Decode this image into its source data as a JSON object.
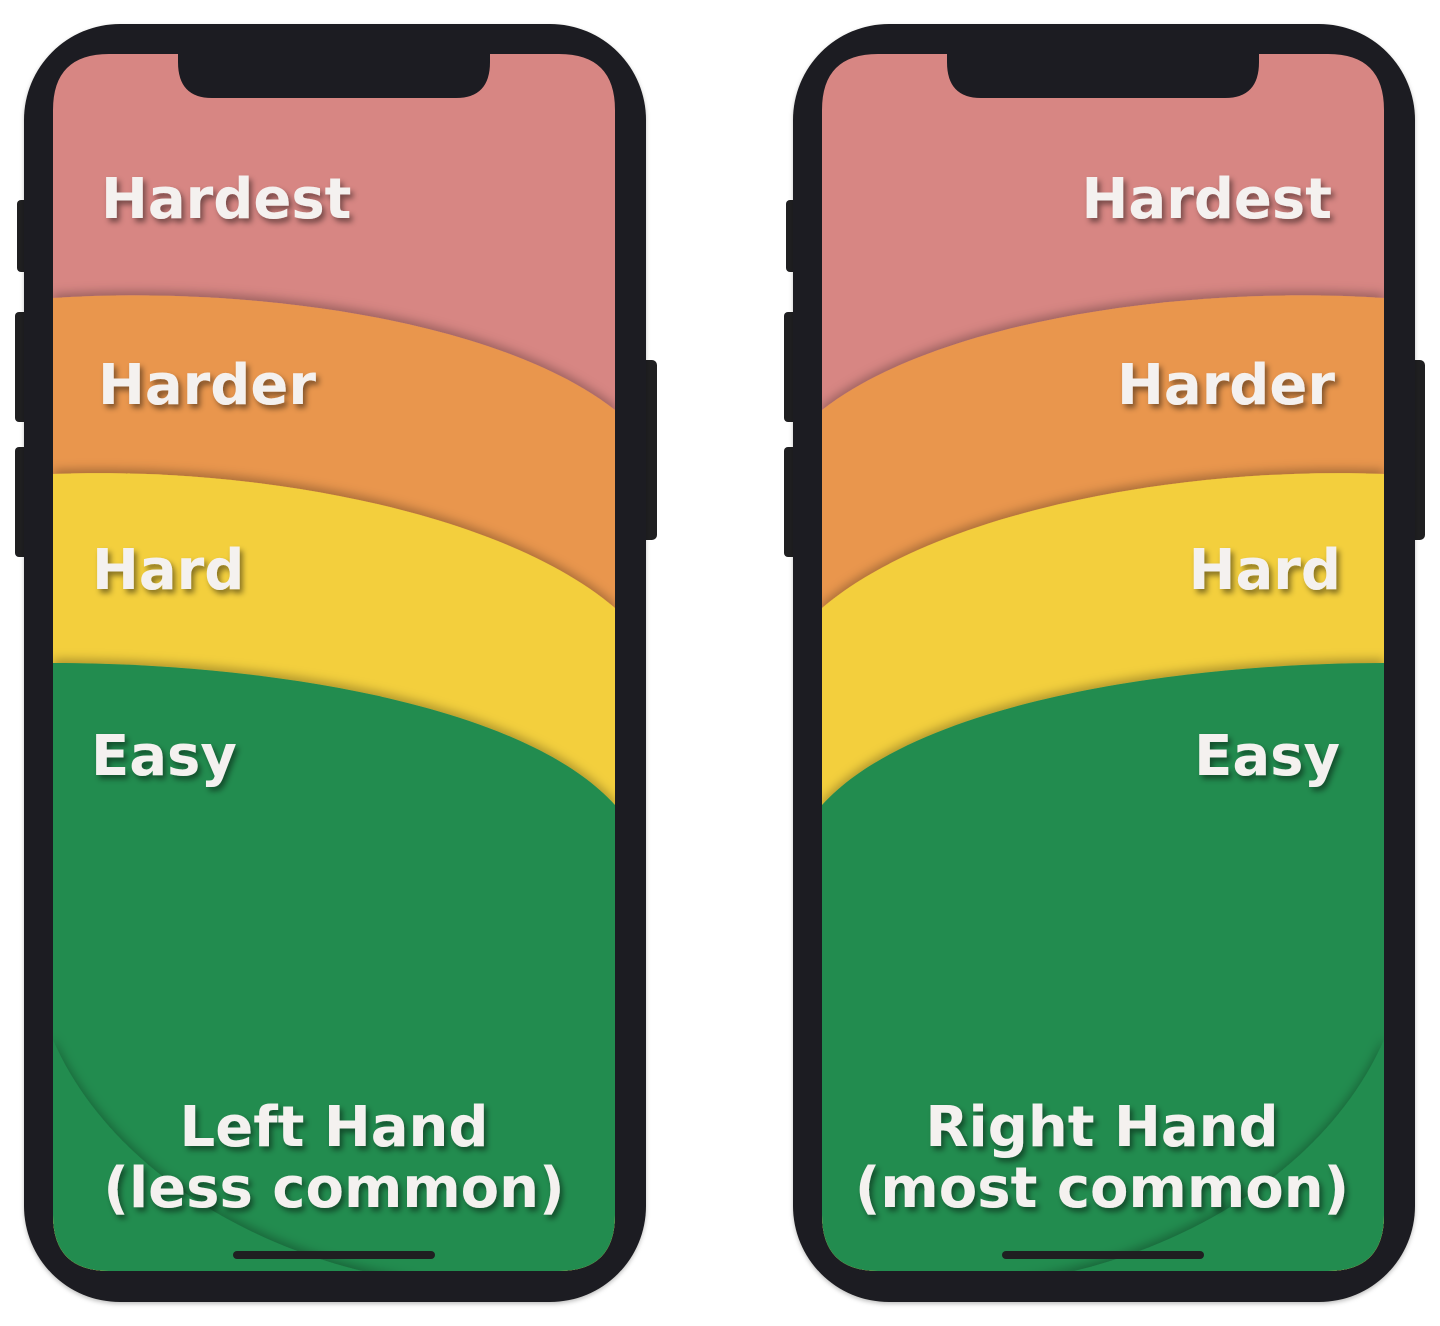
{
  "colors": {
    "frame": "#1f1f21",
    "hardest": "#d78683",
    "harder": "#e9964d",
    "hard": "#f3cf3d",
    "easy": "#228c4f",
    "label_text": "#f4f1ef",
    "home_indicator": "#1f1f21"
  },
  "phones": [
    {
      "id": "left",
      "zones": {
        "hardest": "Hardest",
        "harder": "Harder",
        "hard": "Hard",
        "easy": "Easy"
      },
      "caption_line1": "Left Hand",
      "caption_line2": "(less common)"
    },
    {
      "id": "right",
      "zones": {
        "hardest": "Hardest",
        "harder": "Harder",
        "hard": "Hard",
        "easy": "Easy"
      },
      "caption_line1": "Right Hand",
      "caption_line2": "(most common)"
    }
  ]
}
